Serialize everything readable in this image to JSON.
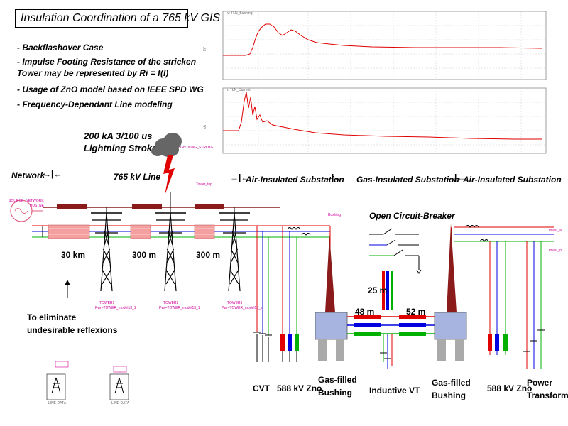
{
  "title": "Insulation Coordination of a 765 kV GIS",
  "notes": [
    "- Backflashover Case",
    "- Impulse Footing Resistance of the stricken",
    "  Tower may be represented by Ri = f(I)",
    "- Usage of ZnO model based on IEEE SPD WG",
    "- Frequency-Dependant Line modeling"
  ],
  "stroke": {
    "line1": "200 kA 3/100 us",
    "line2": "Lightning Stroke",
    "tag": "LIGHTNING_STROKE"
  },
  "sections": {
    "network": "Network",
    "line": "765 kV Line",
    "ais1": "Air-Insulated Substation",
    "gis": "Gas-Insulated Substation",
    "ais2": "Air-Insulated Substation",
    "breaker": "Open Circuit-Breaker"
  },
  "distances": {
    "d1": "30 km",
    "d2": "300 m",
    "d3": "300 m",
    "d4": "48 m",
    "d5": "52 m",
    "d6": "25 m"
  },
  "annotation": {
    "line1": "To eliminate",
    "line2": "undesirable reflexions"
  },
  "components": {
    "cvt": "CVT",
    "zno1": "588 kV Zno",
    "bushing1_l1": "Gas-filled",
    "bushing1_l2": "Bushing",
    "ivt": "Inductive VT",
    "bushing2_l1": "Gas-filled",
    "bushing2_l2": "Bushing",
    "zno2": "588 kV Zno",
    "pt_l1": "Power",
    "pt_l2": "Transformer"
  },
  "small_labels": {
    "source": "SOURCE_NETWORK",
    "bus": "BUS_NET",
    "tower_top": "Tower_top",
    "towers": [
      "TOWER1",
      "TOWER2",
      "TOWER3"
    ],
    "tower_desc": [
      "Pwr=TOWER_model13_1",
      "Pwr=TOWER_model13_1",
      "Pwr=TOWER_model13_x"
    ],
    "bushing_tag": "Bushing",
    "tower_a": "Tower_a",
    "tower_b": "Tower_b",
    "line_data": "LINE DATA"
  },
  "colors": {
    "red": "#e00000",
    "blue": "#0000e0",
    "green": "#00b000",
    "darkred": "#8b1a1a",
    "magenta": "#d0009a",
    "pink": "#f4a0a0",
    "bushing": "#a8b4e0"
  }
}
